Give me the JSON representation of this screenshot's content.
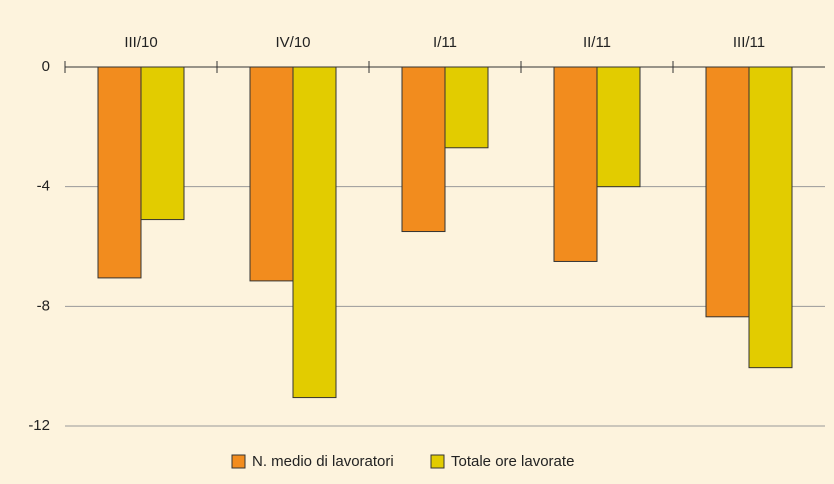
{
  "chart_data": {
    "type": "bar",
    "categories": [
      "III/10",
      "IV/10",
      "I/11",
      "II/11",
      "III/11"
    ],
    "series": [
      {
        "name": "N. medio di lavoratori",
        "color": "#f28c1e",
        "values": [
          -7.05,
          -7.15,
          -5.5,
          -6.5,
          -8.35
        ]
      },
      {
        "name": "Totale ore lavorate",
        "color": "#e2cc00",
        "values": [
          -5.1,
          -11.05,
          -2.7,
          -4.0,
          -10.05
        ]
      }
    ],
    "ylim": [
      -12,
      0
    ],
    "yticks": [
      0,
      -4,
      -8,
      -12
    ],
    "grid": true
  }
}
